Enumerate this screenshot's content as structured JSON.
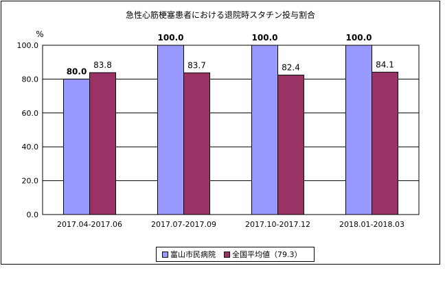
{
  "chart_data": {
    "type": "bar",
    "title": "急性心筋梗塞患者における退院時スタチン投与割合",
    "ylabel": "%",
    "xlabel": "",
    "ylim": [
      0,
      100
    ],
    "yticks": [
      "0.0",
      "20.0",
      "40.0",
      "60.0",
      "80.0",
      "100.0"
    ],
    "grid": true,
    "legend_position": "bottom",
    "categories": [
      "2017.04-2017.06",
      "2017.07-2017.09",
      "2017.10-2017.12",
      "2018.01-2018.03"
    ],
    "series": [
      {
        "name": "富山市民病院",
        "values": [
          80.0,
          100.0,
          100.0,
          100.0
        ],
        "labels": [
          "80.0",
          "100.0",
          "100.0",
          "100.0"
        ],
        "color": "#9999ff"
      },
      {
        "name": "全国平均値（79.3）",
        "values": [
          83.8,
          83.7,
          82.4,
          84.1
        ],
        "labels": [
          "83.8",
          "83.7",
          "82.4",
          "84.1"
        ],
        "color": "#993366"
      }
    ]
  }
}
